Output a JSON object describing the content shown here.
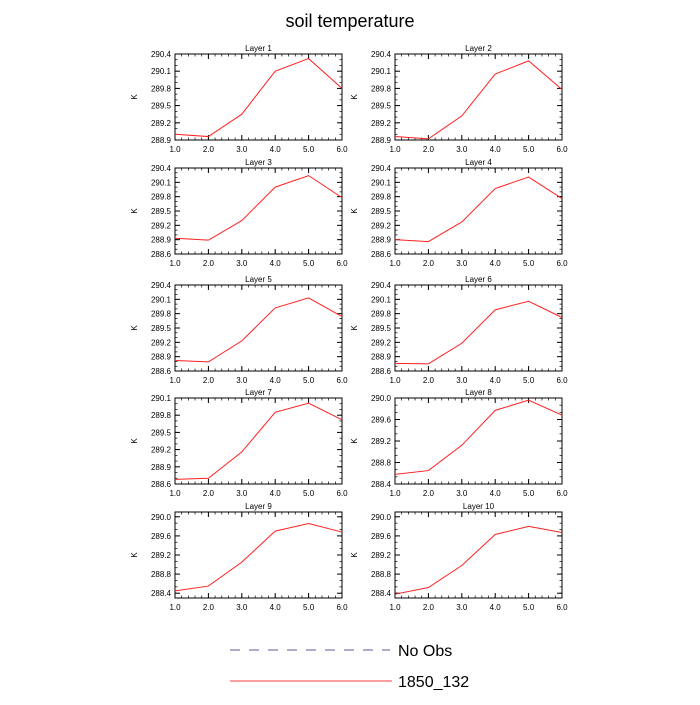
{
  "chart_data": {
    "type": "line",
    "title": "soil temperature",
    "xlim": [
      1.0,
      6.0
    ],
    "x": [
      1.0,
      2.0,
      3.0,
      4.0,
      5.0,
      6.0
    ],
    "x_tick_labels": [
      "1.0",
      "2.0",
      "3.0",
      "4.0",
      "5.0",
      "6.0"
    ],
    "legend": {
      "placement": "bottom-center",
      "entries": [
        {
          "label": "No Obs",
          "style": "dashed",
          "color": "#5a5aa0"
        },
        {
          "label": "1850_132",
          "style": "solid",
          "color": "#ff4040"
        }
      ]
    },
    "panels": [
      {
        "title": "Layer 1",
        "ylabel": "K",
        "ylim": [
          288.9,
          290.4
        ],
        "yticks": [
          "288.9",
          "289.2",
          "289.5",
          "289.8",
          "290.1",
          "290.4"
        ],
        "series": [
          {
            "name": "1850_132",
            "values": [
              289.0,
              288.96,
              289.35,
              290.1,
              290.32,
              289.8
            ]
          }
        ]
      },
      {
        "title": "Layer 2",
        "ylabel": "K",
        "ylim": [
          288.9,
          290.4
        ],
        "yticks": [
          "288.9",
          "289.2",
          "289.5",
          "289.8",
          "290.1",
          "290.4"
        ],
        "series": [
          {
            "name": "1850_132",
            "values": [
              288.96,
              288.92,
              289.32,
              290.05,
              290.28,
              289.78
            ]
          }
        ]
      },
      {
        "title": "Layer 3",
        "ylabel": "K",
        "ylim": [
          288.6,
          290.4
        ],
        "yticks": [
          "288.6",
          "288.9",
          "289.2",
          "289.5",
          "289.8",
          "290.1",
          "290.4"
        ],
        "series": [
          {
            "name": "1850_132",
            "values": [
              288.93,
              288.89,
              289.3,
              290.0,
              290.24,
              289.78
            ]
          }
        ]
      },
      {
        "title": "Layer 4",
        "ylabel": "K",
        "ylim": [
          288.6,
          290.4
        ],
        "yticks": [
          "288.6",
          "288.9",
          "289.2",
          "289.5",
          "289.8",
          "290.1",
          "290.4"
        ],
        "series": [
          {
            "name": "1850_132",
            "values": [
              288.9,
              288.86,
              289.27,
              289.97,
              290.21,
              289.76
            ]
          }
        ]
      },
      {
        "title": "Layer 5",
        "ylabel": "K",
        "ylim": [
          288.6,
          290.4
        ],
        "yticks": [
          "288.6",
          "288.9",
          "289.2",
          "289.5",
          "289.8",
          "290.1",
          "290.4"
        ],
        "series": [
          {
            "name": "1850_132",
            "values": [
              288.82,
              288.79,
              289.23,
              289.92,
              290.13,
              289.74
            ]
          }
        ]
      },
      {
        "title": "Layer 6",
        "ylabel": "K",
        "ylim": [
          288.6,
          290.4
        ],
        "yticks": [
          "288.6",
          "288.9",
          "289.2",
          "289.5",
          "289.8",
          "290.1",
          "290.4"
        ],
        "series": [
          {
            "name": "1850_132",
            "values": [
              288.76,
              288.75,
              289.18,
              289.88,
              290.06,
              289.72
            ]
          }
        ]
      },
      {
        "title": "Layer 7",
        "ylabel": "K",
        "ylim": [
          288.6,
          290.1
        ],
        "yticks": [
          "288.6",
          "288.9",
          "289.2",
          "289.5",
          "289.8",
          "290.1"
        ],
        "series": [
          {
            "name": "1850_132",
            "values": [
              288.68,
              288.7,
              289.16,
              289.85,
              290.01,
              289.72
            ]
          }
        ]
      },
      {
        "title": "Layer 8",
        "ylabel": "K",
        "ylim": [
          288.4,
          290.0
        ],
        "yticks": [
          "288.4",
          "288.8",
          "289.2",
          "289.6",
          "290.0"
        ],
        "series": [
          {
            "name": "1850_132",
            "values": [
              288.58,
              288.65,
              289.12,
              289.77,
              289.96,
              289.68
            ]
          }
        ]
      },
      {
        "title": "Layer 9",
        "ylabel": "K",
        "ylim": [
          288.3,
          290.1
        ],
        "yticks": [
          "288.4",
          "288.8",
          "289.2",
          "289.6",
          "290.0"
        ],
        "series": [
          {
            "name": "1850_132",
            "values": [
              288.45,
              288.55,
              289.05,
              289.7,
              289.86,
              289.68
            ]
          }
        ]
      },
      {
        "title": "Layer 10",
        "ylabel": "K",
        "ylim": [
          288.3,
          290.1
        ],
        "yticks": [
          "288.4",
          "288.8",
          "289.2",
          "289.6",
          "290.0"
        ],
        "series": [
          {
            "name": "1850_132",
            "values": [
              288.38,
              288.52,
              288.98,
              289.63,
              289.8,
              289.67
            ]
          }
        ]
      }
    ]
  }
}
